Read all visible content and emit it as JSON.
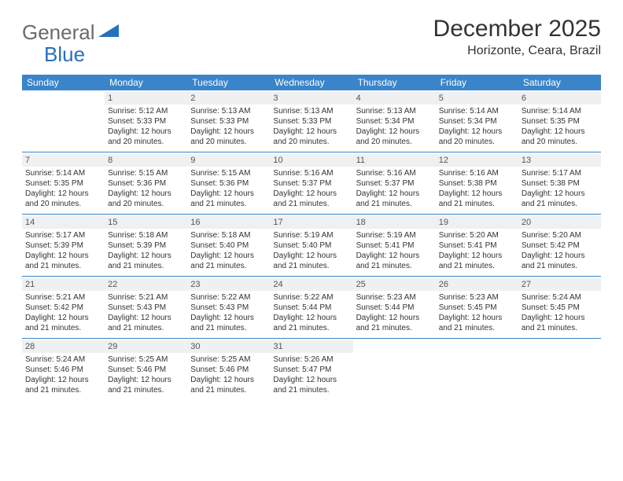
{
  "brand": {
    "general": "General",
    "blue": "Blue"
  },
  "title": "December 2025",
  "location": "Horizonte, Ceara, Brazil",
  "colors": {
    "header_bg": "#3a84c9",
    "header_text": "#ffffff",
    "daynum_bg": "#eef0f1",
    "text": "#333333",
    "logo_gray": "#6b6b6b",
    "logo_blue": "#2770bb",
    "row_border": "#3a84c9"
  },
  "weekdays": [
    "Sunday",
    "Monday",
    "Tuesday",
    "Wednesday",
    "Thursday",
    "Friday",
    "Saturday"
  ],
  "weeks": [
    [
      {
        "n": "",
        "sr": "",
        "ss": "",
        "dl": ""
      },
      {
        "n": "1",
        "sr": "Sunrise: 5:12 AM",
        "ss": "Sunset: 5:33 PM",
        "dl": "Daylight: 12 hours and 20 minutes."
      },
      {
        "n": "2",
        "sr": "Sunrise: 5:13 AM",
        "ss": "Sunset: 5:33 PM",
        "dl": "Daylight: 12 hours and 20 minutes."
      },
      {
        "n": "3",
        "sr": "Sunrise: 5:13 AM",
        "ss": "Sunset: 5:33 PM",
        "dl": "Daylight: 12 hours and 20 minutes."
      },
      {
        "n": "4",
        "sr": "Sunrise: 5:13 AM",
        "ss": "Sunset: 5:34 PM",
        "dl": "Daylight: 12 hours and 20 minutes."
      },
      {
        "n": "5",
        "sr": "Sunrise: 5:14 AM",
        "ss": "Sunset: 5:34 PM",
        "dl": "Daylight: 12 hours and 20 minutes."
      },
      {
        "n": "6",
        "sr": "Sunrise: 5:14 AM",
        "ss": "Sunset: 5:35 PM",
        "dl": "Daylight: 12 hours and 20 minutes."
      }
    ],
    [
      {
        "n": "7",
        "sr": "Sunrise: 5:14 AM",
        "ss": "Sunset: 5:35 PM",
        "dl": "Daylight: 12 hours and 20 minutes."
      },
      {
        "n": "8",
        "sr": "Sunrise: 5:15 AM",
        "ss": "Sunset: 5:36 PM",
        "dl": "Daylight: 12 hours and 20 minutes."
      },
      {
        "n": "9",
        "sr": "Sunrise: 5:15 AM",
        "ss": "Sunset: 5:36 PM",
        "dl": "Daylight: 12 hours and 21 minutes."
      },
      {
        "n": "10",
        "sr": "Sunrise: 5:16 AM",
        "ss": "Sunset: 5:37 PM",
        "dl": "Daylight: 12 hours and 21 minutes."
      },
      {
        "n": "11",
        "sr": "Sunrise: 5:16 AM",
        "ss": "Sunset: 5:37 PM",
        "dl": "Daylight: 12 hours and 21 minutes."
      },
      {
        "n": "12",
        "sr": "Sunrise: 5:16 AM",
        "ss": "Sunset: 5:38 PM",
        "dl": "Daylight: 12 hours and 21 minutes."
      },
      {
        "n": "13",
        "sr": "Sunrise: 5:17 AM",
        "ss": "Sunset: 5:38 PM",
        "dl": "Daylight: 12 hours and 21 minutes."
      }
    ],
    [
      {
        "n": "14",
        "sr": "Sunrise: 5:17 AM",
        "ss": "Sunset: 5:39 PM",
        "dl": "Daylight: 12 hours and 21 minutes."
      },
      {
        "n": "15",
        "sr": "Sunrise: 5:18 AM",
        "ss": "Sunset: 5:39 PM",
        "dl": "Daylight: 12 hours and 21 minutes."
      },
      {
        "n": "16",
        "sr": "Sunrise: 5:18 AM",
        "ss": "Sunset: 5:40 PM",
        "dl": "Daylight: 12 hours and 21 minutes."
      },
      {
        "n": "17",
        "sr": "Sunrise: 5:19 AM",
        "ss": "Sunset: 5:40 PM",
        "dl": "Daylight: 12 hours and 21 minutes."
      },
      {
        "n": "18",
        "sr": "Sunrise: 5:19 AM",
        "ss": "Sunset: 5:41 PM",
        "dl": "Daylight: 12 hours and 21 minutes."
      },
      {
        "n": "19",
        "sr": "Sunrise: 5:20 AM",
        "ss": "Sunset: 5:41 PM",
        "dl": "Daylight: 12 hours and 21 minutes."
      },
      {
        "n": "20",
        "sr": "Sunrise: 5:20 AM",
        "ss": "Sunset: 5:42 PM",
        "dl": "Daylight: 12 hours and 21 minutes."
      }
    ],
    [
      {
        "n": "21",
        "sr": "Sunrise: 5:21 AM",
        "ss": "Sunset: 5:42 PM",
        "dl": "Daylight: 12 hours and 21 minutes."
      },
      {
        "n": "22",
        "sr": "Sunrise: 5:21 AM",
        "ss": "Sunset: 5:43 PM",
        "dl": "Daylight: 12 hours and 21 minutes."
      },
      {
        "n": "23",
        "sr": "Sunrise: 5:22 AM",
        "ss": "Sunset: 5:43 PM",
        "dl": "Daylight: 12 hours and 21 minutes."
      },
      {
        "n": "24",
        "sr": "Sunrise: 5:22 AM",
        "ss": "Sunset: 5:44 PM",
        "dl": "Daylight: 12 hours and 21 minutes."
      },
      {
        "n": "25",
        "sr": "Sunrise: 5:23 AM",
        "ss": "Sunset: 5:44 PM",
        "dl": "Daylight: 12 hours and 21 minutes."
      },
      {
        "n": "26",
        "sr": "Sunrise: 5:23 AM",
        "ss": "Sunset: 5:45 PM",
        "dl": "Daylight: 12 hours and 21 minutes."
      },
      {
        "n": "27",
        "sr": "Sunrise: 5:24 AM",
        "ss": "Sunset: 5:45 PM",
        "dl": "Daylight: 12 hours and 21 minutes."
      }
    ],
    [
      {
        "n": "28",
        "sr": "Sunrise: 5:24 AM",
        "ss": "Sunset: 5:46 PM",
        "dl": "Daylight: 12 hours and 21 minutes."
      },
      {
        "n": "29",
        "sr": "Sunrise: 5:25 AM",
        "ss": "Sunset: 5:46 PM",
        "dl": "Daylight: 12 hours and 21 minutes."
      },
      {
        "n": "30",
        "sr": "Sunrise: 5:25 AM",
        "ss": "Sunset: 5:46 PM",
        "dl": "Daylight: 12 hours and 21 minutes."
      },
      {
        "n": "31",
        "sr": "Sunrise: 5:26 AM",
        "ss": "Sunset: 5:47 PM",
        "dl": "Daylight: 12 hours and 21 minutes."
      },
      {
        "n": "",
        "sr": "",
        "ss": "",
        "dl": ""
      },
      {
        "n": "",
        "sr": "",
        "ss": "",
        "dl": ""
      },
      {
        "n": "",
        "sr": "",
        "ss": "",
        "dl": ""
      }
    ]
  ]
}
